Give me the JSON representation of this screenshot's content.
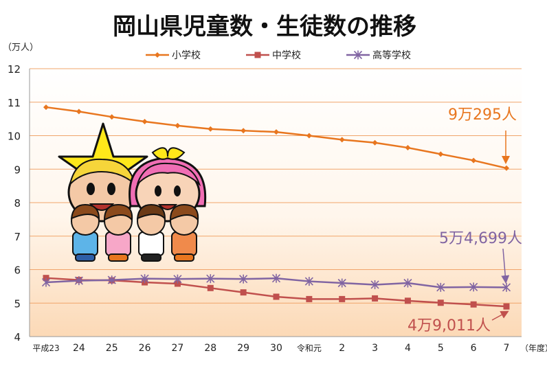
{
  "chart_data": {
    "type": "line",
    "title": "岡山県児童数・生徒数の推移",
    "yunit": "（万人）",
    "xunit": "（年度）",
    "ylim": [
      4,
      12
    ],
    "yticks": [
      "4",
      "5",
      "6",
      "7",
      "8",
      "9",
      "10",
      "11",
      "12"
    ],
    "categories": [
      "平成23",
      "24",
      "25",
      "26",
      "27",
      "28",
      "29",
      "30",
      "令和元",
      "2",
      "3",
      "4",
      "5",
      "6",
      "7"
    ],
    "legend_position": "top",
    "grid": true,
    "series": [
      {
        "name": "小学校",
        "color": "#E8761F",
        "marker": "diamond",
        "values": [
          10.85,
          10.72,
          10.56,
          10.42,
          10.3,
          10.2,
          10.15,
          10.11,
          10.0,
          9.88,
          9.79,
          9.64,
          9.45,
          9.26,
          9.03
        ]
      },
      {
        "name": "中学校",
        "color": "#C0504D",
        "marker": "square",
        "values": [
          5.75,
          5.69,
          5.68,
          5.62,
          5.58,
          5.45,
          5.32,
          5.19,
          5.12,
          5.12,
          5.14,
          5.07,
          5.01,
          4.96,
          4.9
        ]
      },
      {
        "name": "高等学校",
        "color": "#8064A2",
        "marker": "star",
        "values": [
          5.62,
          5.67,
          5.69,
          5.73,
          5.72,
          5.73,
          5.72,
          5.74,
          5.65,
          5.6,
          5.55,
          5.6,
          5.47,
          5.48,
          5.47
        ]
      }
    ],
    "annotations": [
      {
        "text": "9万295人",
        "series": 0,
        "color": "#E8761F"
      },
      {
        "text": "5万4,699人",
        "series": 2,
        "color": "#8064A2"
      },
      {
        "text": "4万9,011人",
        "series": 1,
        "color": "#C0504D"
      }
    ],
    "illustration": "mascot-characters-with-children"
  }
}
